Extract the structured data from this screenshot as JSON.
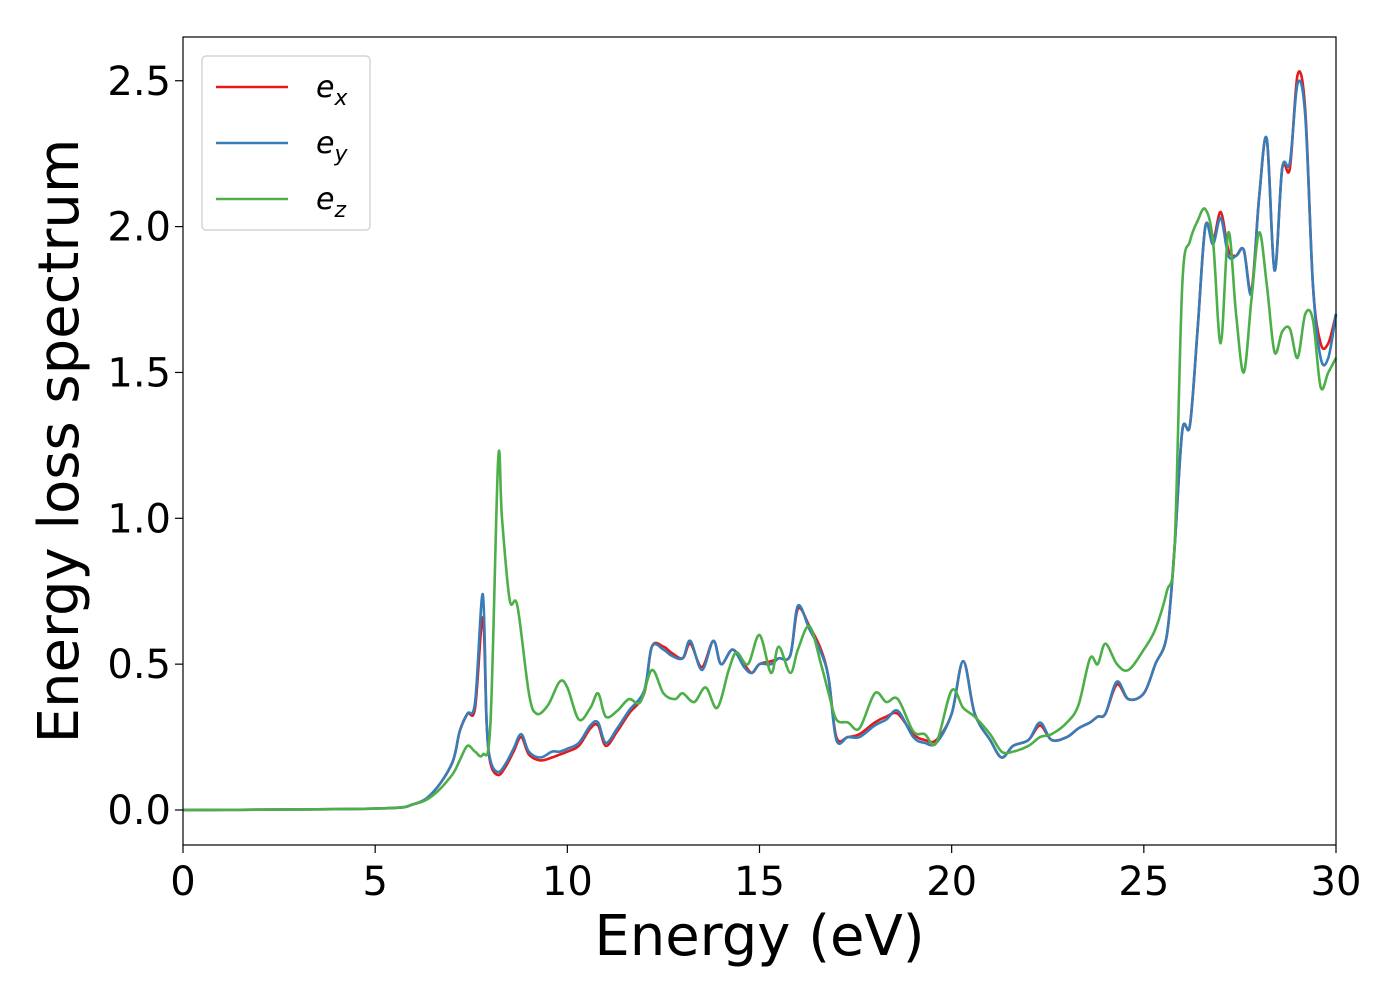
{
  "chart_data": {
    "type": "line",
    "title": "",
    "xlabel": "Energy (eV)",
    "ylabel": "Energy loss spectrum",
    "xlim": [
      0,
      30
    ],
    "ylim": [
      -0.12,
      2.65
    ],
    "xticks": [
      0,
      5,
      10,
      15,
      20,
      25,
      30
    ],
    "xtick_labels": [
      "0",
      "5",
      "10",
      "15",
      "20",
      "25",
      "30"
    ],
    "yticks": [
      0.0,
      0.5,
      1.0,
      1.5,
      2.0,
      2.5
    ],
    "ytick_labels": [
      "0.0",
      "0.5",
      "1.0",
      "1.5",
      "2.0",
      "2.5"
    ],
    "grid": false,
    "legend_position": "top-left",
    "series": [
      {
        "name": "e_x",
        "label_base": "e",
        "label_sub": "x",
        "color": "#e41a1c",
        "x": [
          0,
          5,
          6,
          6.5,
          7,
          7.2,
          7.4,
          7.6,
          7.8,
          7.9,
          8.0,
          8.2,
          8.4,
          8.6,
          8.8,
          9.0,
          9.3,
          9.6,
          9.8,
          10.0,
          10.3,
          10.6,
          10.8,
          11.0,
          11.3,
          11.6,
          12.0,
          12.2,
          12.5,
          12.7,
          13.0,
          13.2,
          13.5,
          13.8,
          14.0,
          14.3,
          14.6,
          14.8,
          15.0,
          15.3,
          15.5,
          15.8,
          16.0,
          16.3,
          16.6,
          16.8,
          17.0,
          17.3,
          17.6,
          18.0,
          18.3,
          18.6,
          19.0,
          19.3,
          19.6,
          20.0,
          20.3,
          20.6,
          21.0,
          21.3,
          21.6,
          22.0,
          22.3,
          22.6,
          23.0,
          23.3,
          23.6,
          23.8,
          24.0,
          24.3,
          24.6,
          25.0,
          25.3,
          25.6,
          25.8,
          26.0,
          26.2,
          26.4,
          26.6,
          26.8,
          27.0,
          27.2,
          27.4,
          27.6,
          27.8,
          28.0,
          28.2,
          28.4,
          28.6,
          28.8,
          29.0,
          29.2,
          29.4,
          29.6,
          29.8,
          30.0
        ],
        "y": [
          0.0,
          0.005,
          0.02,
          0.06,
          0.16,
          0.27,
          0.33,
          0.35,
          0.66,
          0.3,
          0.16,
          0.12,
          0.15,
          0.2,
          0.25,
          0.19,
          0.17,
          0.18,
          0.19,
          0.2,
          0.22,
          0.28,
          0.29,
          0.22,
          0.27,
          0.33,
          0.4,
          0.56,
          0.56,
          0.54,
          0.52,
          0.57,
          0.49,
          0.58,
          0.5,
          0.55,
          0.5,
          0.47,
          0.5,
          0.51,
          0.52,
          0.53,
          0.69,
          0.63,
          0.55,
          0.45,
          0.25,
          0.25,
          0.26,
          0.3,
          0.32,
          0.33,
          0.26,
          0.24,
          0.24,
          0.33,
          0.51,
          0.33,
          0.24,
          0.18,
          0.22,
          0.24,
          0.29,
          0.24,
          0.25,
          0.28,
          0.3,
          0.32,
          0.33,
          0.43,
          0.38,
          0.4,
          0.5,
          0.6,
          0.9,
          1.3,
          1.32,
          1.65,
          2.0,
          1.95,
          2.05,
          1.92,
          1.9,
          1.92,
          1.78,
          2.1,
          2.3,
          1.85,
          2.2,
          2.2,
          2.52,
          2.4,
          1.8,
          1.6,
          1.6,
          1.7
        ]
      },
      {
        "name": "e_y",
        "label_base": "e",
        "label_sub": "y",
        "color": "#377eb8",
        "x": [
          0,
          5,
          6,
          6.5,
          7,
          7.2,
          7.4,
          7.6,
          7.8,
          7.9,
          8.0,
          8.2,
          8.4,
          8.6,
          8.8,
          9.0,
          9.3,
          9.6,
          9.8,
          10.0,
          10.3,
          10.6,
          10.8,
          11.0,
          11.3,
          11.6,
          12.0,
          12.2,
          12.5,
          12.7,
          13.0,
          13.2,
          13.5,
          13.8,
          14.0,
          14.3,
          14.6,
          14.8,
          15.0,
          15.3,
          15.5,
          15.8,
          16.0,
          16.3,
          16.6,
          16.8,
          17.0,
          17.3,
          17.6,
          18.0,
          18.3,
          18.6,
          19.0,
          19.3,
          19.6,
          20.0,
          20.3,
          20.6,
          21.0,
          21.3,
          21.6,
          22.0,
          22.3,
          22.6,
          23.0,
          23.3,
          23.6,
          23.8,
          24.0,
          24.3,
          24.6,
          25.0,
          25.3,
          25.6,
          25.8,
          26.0,
          26.2,
          26.4,
          26.6,
          26.8,
          27.0,
          27.2,
          27.4,
          27.6,
          27.8,
          28.0,
          28.2,
          28.4,
          28.6,
          28.8,
          29.0,
          29.2,
          29.4,
          29.6,
          29.8,
          30.0
        ],
        "y": [
          0.0,
          0.005,
          0.02,
          0.06,
          0.16,
          0.27,
          0.33,
          0.37,
          0.74,
          0.3,
          0.17,
          0.13,
          0.16,
          0.21,
          0.26,
          0.2,
          0.18,
          0.2,
          0.2,
          0.21,
          0.23,
          0.29,
          0.3,
          0.23,
          0.28,
          0.34,
          0.41,
          0.56,
          0.55,
          0.53,
          0.52,
          0.58,
          0.48,
          0.58,
          0.5,
          0.55,
          0.49,
          0.47,
          0.5,
          0.5,
          0.52,
          0.53,
          0.7,
          0.62,
          0.54,
          0.45,
          0.24,
          0.25,
          0.25,
          0.29,
          0.31,
          0.34,
          0.25,
          0.23,
          0.23,
          0.33,
          0.51,
          0.33,
          0.24,
          0.18,
          0.22,
          0.24,
          0.3,
          0.24,
          0.25,
          0.28,
          0.3,
          0.32,
          0.33,
          0.44,
          0.38,
          0.4,
          0.5,
          0.6,
          0.9,
          1.3,
          1.32,
          1.65,
          2.0,
          1.94,
          2.03,
          1.9,
          1.9,
          1.92,
          1.77,
          2.1,
          2.3,
          1.85,
          2.2,
          2.22,
          2.49,
          2.38,
          1.8,
          1.55,
          1.55,
          1.7
        ]
      },
      {
        "name": "e_z",
        "label_base": "e",
        "label_sub": "z",
        "color": "#4daf4a",
        "x": [
          0,
          5,
          6,
          6.5,
          7,
          7.2,
          7.4,
          7.6,
          7.8,
          8.0,
          8.2,
          8.3,
          8.5,
          8.7,
          9.0,
          9.2,
          9.5,
          9.8,
          10.0,
          10.3,
          10.6,
          10.8,
          11.0,
          11.3,
          11.6,
          11.9,
          12.2,
          12.5,
          12.8,
          13.0,
          13.3,
          13.6,
          13.9,
          14.2,
          14.4,
          14.7,
          15.0,
          15.3,
          15.5,
          15.8,
          16.0,
          16.3,
          16.6,
          16.8,
          17.0,
          17.3,
          17.6,
          18.0,
          18.3,
          18.6,
          19.0,
          19.3,
          19.6,
          20.0,
          20.3,
          20.6,
          21.0,
          21.3,
          21.6,
          22.0,
          22.3,
          22.6,
          23.0,
          23.3,
          23.6,
          23.8,
          24.0,
          24.3,
          24.6,
          25.0,
          25.3,
          25.6,
          25.8,
          26.0,
          26.2,
          26.4,
          26.6,
          26.8,
          27.0,
          27.2,
          27.4,
          27.6,
          27.8,
          28.0,
          28.2,
          28.4,
          28.6,
          28.8,
          29.0,
          29.2,
          29.4,
          29.6,
          29.8,
          30.0
        ],
        "y": [
          0.0,
          0.005,
          0.02,
          0.05,
          0.12,
          0.17,
          0.22,
          0.2,
          0.19,
          0.3,
          1.2,
          1.0,
          0.72,
          0.7,
          0.4,
          0.33,
          0.36,
          0.44,
          0.42,
          0.31,
          0.35,
          0.4,
          0.32,
          0.34,
          0.38,
          0.37,
          0.48,
          0.4,
          0.38,
          0.4,
          0.37,
          0.42,
          0.35,
          0.48,
          0.54,
          0.5,
          0.6,
          0.47,
          0.56,
          0.47,
          0.55,
          0.63,
          0.5,
          0.4,
          0.31,
          0.3,
          0.28,
          0.4,
          0.37,
          0.38,
          0.27,
          0.26,
          0.23,
          0.41,
          0.35,
          0.32,
          0.26,
          0.2,
          0.2,
          0.22,
          0.25,
          0.26,
          0.3,
          0.36,
          0.52,
          0.5,
          0.57,
          0.5,
          0.48,
          0.55,
          0.62,
          0.75,
          0.9,
          1.8,
          1.95,
          2.02,
          2.06,
          1.95,
          1.6,
          1.98,
          1.7,
          1.5,
          1.75,
          1.98,
          1.8,
          1.57,
          1.64,
          1.65,
          1.55,
          1.7,
          1.68,
          1.45,
          1.5,
          1.55
        ]
      }
    ]
  }
}
